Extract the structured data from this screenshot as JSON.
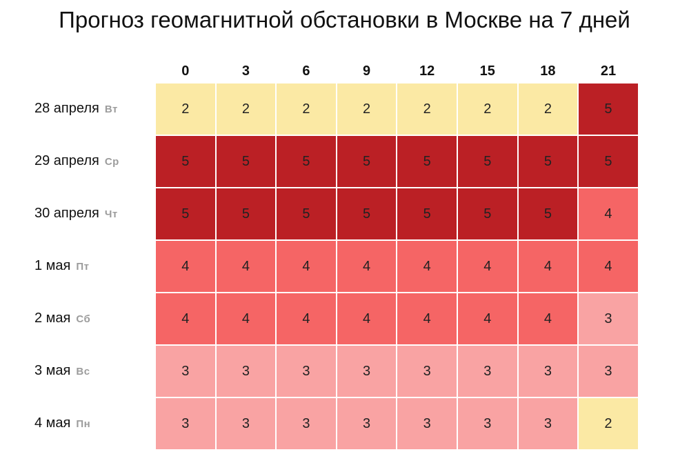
{
  "title": "Прогноз геомагнитной обстановки в Москве на 7 дней",
  "chart_data": {
    "type": "heatmap",
    "title": "Прогноз геомагнитной обстановки в Москве на 7 дней",
    "columns": [
      "0",
      "3",
      "6",
      "9",
      "12",
      "15",
      "18",
      "21"
    ],
    "rows": [
      {
        "date": "28 апреля",
        "dow": "Вт",
        "values": [
          2,
          2,
          2,
          2,
          2,
          2,
          2,
          5
        ]
      },
      {
        "date": "29 апреля",
        "dow": "Ср",
        "values": [
          5,
          5,
          5,
          5,
          5,
          5,
          5,
          5
        ]
      },
      {
        "date": "30 апреля",
        "dow": "Чт",
        "values": [
          5,
          5,
          5,
          5,
          5,
          5,
          5,
          4
        ]
      },
      {
        "date": "1 мая",
        "dow": "Пт",
        "values": [
          4,
          4,
          4,
          4,
          4,
          4,
          4,
          4
        ]
      },
      {
        "date": "2 мая",
        "dow": "Сб",
        "values": [
          4,
          4,
          4,
          4,
          4,
          4,
          4,
          3
        ]
      },
      {
        "date": "3 мая",
        "dow": "Вс",
        "values": [
          3,
          3,
          3,
          3,
          3,
          3,
          3,
          3
        ]
      },
      {
        "date": "4 мая",
        "dow": "Пн",
        "values": [
          3,
          3,
          3,
          3,
          3,
          3,
          3,
          2
        ]
      }
    ],
    "color_scale": {
      "2": "#fbe9a4",
      "3": "#f9a3a3",
      "4": "#f56565",
      "5": "#bb2025"
    },
    "legend": "none",
    "grid": true
  }
}
